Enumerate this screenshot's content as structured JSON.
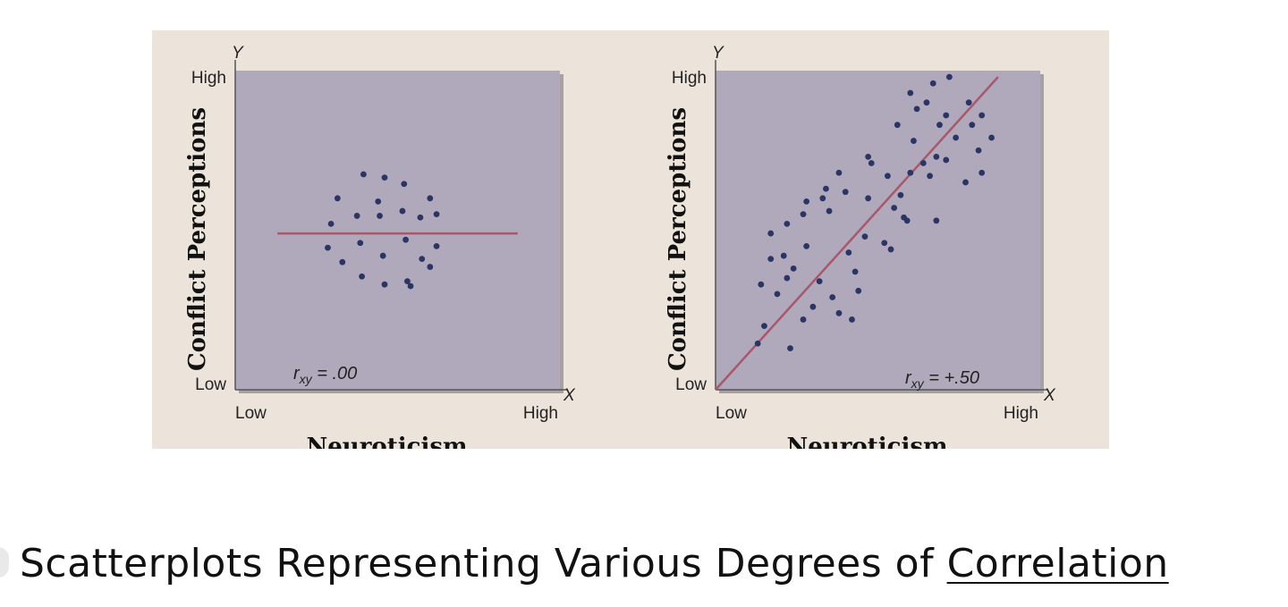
{
  "caption": {
    "text_main": "Scatterplots Representing Various Degrees of ",
    "text_underlined": "Correlation"
  },
  "colors": {
    "panel_background": "#ece4da",
    "plot_background": "#afa9bb",
    "point": "#2a3566",
    "regression_line": "#a8586a"
  },
  "chart_data": [
    {
      "type": "scatter",
      "title": "",
      "xlabel": "Neuroticism",
      "ylabel": "Conflict Perceptions",
      "x_axis_letter": "X",
      "y_axis_letter": "Y",
      "x_tick_labels": [
        "Low",
        "High"
      ],
      "y_tick_labels": [
        "Low",
        "High"
      ],
      "xlim": [
        0,
        100
      ],
      "ylim": [
        0,
        100
      ],
      "annotation": {
        "prefix": "r",
        "subscript": "xy",
        "text": " = .00"
      },
      "trend_line": {
        "from": [
          13,
          49
        ],
        "to": [
          87,
          49
        ]
      },
      "grid": false,
      "points": [
        [
          39.5,
          67.5
        ],
        [
          46,
          66.5
        ],
        [
          52,
          64.5
        ],
        [
          31.5,
          60
        ],
        [
          44,
          59
        ],
        [
          60,
          60
        ],
        [
          37.5,
          54.5
        ],
        [
          44.5,
          54.5
        ],
        [
          51.5,
          56
        ],
        [
          57,
          54
        ],
        [
          29.5,
          52
        ],
        [
          62,
          55
        ],
        [
          38.5,
          46
        ],
        [
          52.5,
          47
        ],
        [
          28.5,
          44.5
        ],
        [
          62,
          45
        ],
        [
          45.5,
          42
        ],
        [
          57.5,
          41
        ],
        [
          33,
          40
        ],
        [
          60,
          38.5
        ],
        [
          39,
          35.5
        ],
        [
          53,
          34
        ],
        [
          46,
          33
        ],
        [
          54,
          32.5
        ]
      ]
    },
    {
      "type": "scatter",
      "title": "",
      "xlabel": "Neuroticism",
      "ylabel": "Conflict Perceptions",
      "x_axis_letter": "X",
      "y_axis_letter": "Y",
      "x_tick_labels": [
        "Low",
        "High"
      ],
      "y_tick_labels": [
        "Low",
        "High"
      ],
      "xlim": [
        0,
        100
      ],
      "ylim": [
        0,
        100
      ],
      "annotation": {
        "prefix": "r",
        "subscript": "xy",
        "text": " = +.50"
      },
      "trend_line": {
        "from": [
          0,
          0
        ],
        "to": [
          87,
          98
        ]
      },
      "grid": false,
      "points": [
        [
          13,
          14.5
        ],
        [
          23,
          13
        ],
        [
          30,
          26
        ],
        [
          38,
          24
        ],
        [
          42,
          22
        ],
        [
          15,
          20
        ],
        [
          27,
          22
        ],
        [
          36,
          29
        ],
        [
          44,
          31
        ],
        [
          19,
          30
        ],
        [
          14,
          33
        ],
        [
          22,
          35
        ],
        [
          32,
          34
        ],
        [
          43,
          37
        ],
        [
          21,
          42
        ],
        [
          17,
          41
        ],
        [
          24,
          38
        ],
        [
          28,
          45
        ],
        [
          41,
          43
        ],
        [
          52,
          46
        ],
        [
          58,
          54
        ],
        [
          17,
          49
        ],
        [
          22,
          52
        ],
        [
          27,
          55
        ],
        [
          35,
          56
        ],
        [
          46,
          48
        ],
        [
          54,
          44
        ],
        [
          59,
          53
        ],
        [
          28,
          59
        ],
        [
          33,
          60
        ],
        [
          40,
          62
        ],
        [
          47,
          60
        ],
        [
          55,
          57
        ],
        [
          68,
          53
        ],
        [
          34,
          63
        ],
        [
          48,
          71
        ],
        [
          57,
          61
        ],
        [
          66,
          67
        ],
        [
          77,
          65
        ],
        [
          38,
          68
        ],
        [
          53,
          67
        ],
        [
          60,
          68
        ],
        [
          68,
          73
        ],
        [
          71,
          72
        ],
        [
          82,
          68
        ],
        [
          74,
          79
        ],
        [
          47,
          73
        ],
        [
          61,
          78
        ],
        [
          64,
          71
        ],
        [
          69,
          83
        ],
        [
          81,
          75
        ],
        [
          79,
          83
        ],
        [
          85,
          79
        ],
        [
          56,
          83
        ],
        [
          62,
          88
        ],
        [
          65,
          90
        ],
        [
          71,
          86
        ],
        [
          78,
          90
        ],
        [
          82,
          86
        ],
        [
          60,
          93
        ],
        [
          67,
          96
        ],
        [
          72,
          98
        ]
      ]
    }
  ]
}
